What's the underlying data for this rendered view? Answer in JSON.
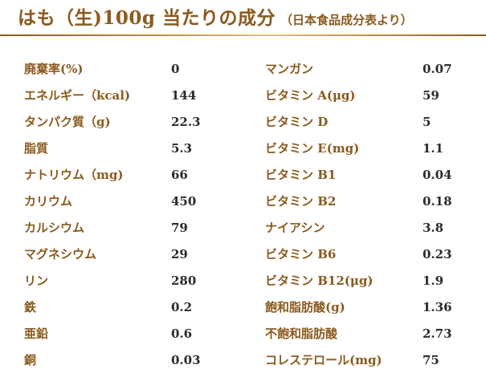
{
  "title": {
    "main": "はも（生)100g 当たりの成分",
    "sub": "（日本食品成分表より）"
  },
  "left_column": [
    {
      "label": "廃棄率(%)",
      "value": "0"
    },
    {
      "label": "エネルギー（kcal)",
      "value": "144"
    },
    {
      "label": "タンパク質（g)",
      "value": "22.3"
    },
    {
      "label": "脂質",
      "value": "5.3"
    },
    {
      "label": "ナトリウム（mg)",
      "value": "66"
    },
    {
      "label": "カリウム",
      "value": "450"
    },
    {
      "label": "カルシウム",
      "value": "79"
    },
    {
      "label": "マグネシウム",
      "value": "29"
    },
    {
      "label": "リン",
      "value": "280"
    },
    {
      "label": "鉄",
      "value": "0.2"
    },
    {
      "label": "亜鉛",
      "value": "0.6"
    },
    {
      "label": "銅",
      "value": "0.03"
    }
  ],
  "right_column": [
    {
      "label": "マンガン",
      "value": "0.07"
    },
    {
      "label": "ビタミン A(μg)",
      "value": "59"
    },
    {
      "label": "ビタミン D",
      "value": "5"
    },
    {
      "label": "ビタミン E(mg)",
      "value": "1.1"
    },
    {
      "label": "ビタミン B1",
      "value": "0.04"
    },
    {
      "label": "ビタミン B2",
      "value": "0.18"
    },
    {
      "label": "ナイアシン",
      "value": "3.8"
    },
    {
      "label": "ビタミン B6",
      "value": "0.23"
    },
    {
      "label": "ビタミン B12(μg)",
      "value": "1.9"
    },
    {
      "label": "飽和脂肪酸(g)",
      "value": "1.36"
    },
    {
      "label": "不飽和脂肪酸",
      "value": "2.73"
    },
    {
      "label": "コレステロール(mg)",
      "value": "75"
    }
  ],
  "colors": {
    "label": "#8a5a1e",
    "value": "#2a2a2a",
    "rule_dark": "#8a5a1e",
    "rule_light": "#e8c27a"
  }
}
